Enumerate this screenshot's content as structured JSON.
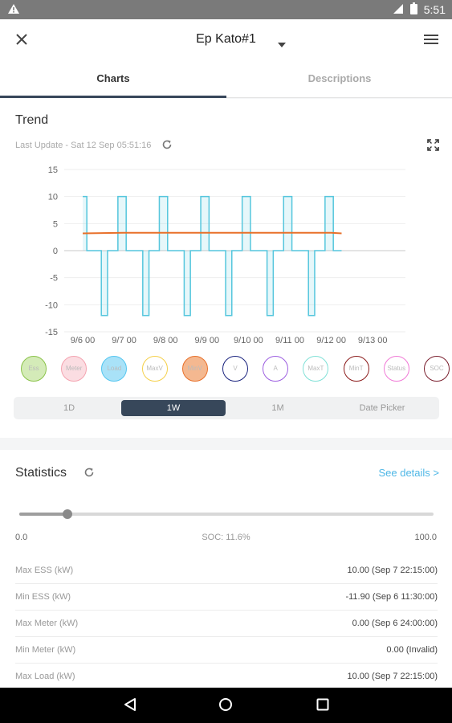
{
  "status_bar": {
    "time": "5:51"
  },
  "header": {
    "title": "Ep Kato#1"
  },
  "tabs": [
    {
      "label": "Charts"
    },
    {
      "label": "Descriptions"
    }
  ],
  "trend": {
    "title": "Trend",
    "last_update": "Last Update - Sat 12 Sep 05:51:16"
  },
  "chart_data": {
    "type": "line",
    "x_tick_labels": [
      "9/6 00",
      "9/7 00",
      "9/8 00",
      "9/9 00",
      "9/10 00",
      "9/11 00",
      "9/12 00",
      "9/13 00"
    ],
    "y_ticks": [
      15,
      10,
      5,
      0,
      -5,
      -10,
      -15
    ],
    "ylim": [
      -15,
      15
    ],
    "series": [
      {
        "name": "Load",
        "color": "#55c6dd",
        "points": [
          [
            0.0,
            10
          ],
          [
            0.1,
            10
          ],
          [
            0.1,
            0
          ],
          [
            0.45,
            0
          ],
          [
            0.45,
            -12
          ],
          [
            0.6,
            -12
          ],
          [
            0.6,
            0
          ],
          [
            0.85,
            0
          ],
          [
            0.85,
            10
          ],
          [
            1.05,
            10
          ],
          [
            1.05,
            0
          ],
          [
            1.45,
            0
          ],
          [
            1.45,
            -12
          ],
          [
            1.6,
            -12
          ],
          [
            1.6,
            0
          ],
          [
            1.85,
            0
          ],
          [
            1.85,
            10
          ],
          [
            2.05,
            10
          ],
          [
            2.05,
            0
          ],
          [
            2.45,
            0
          ],
          [
            2.45,
            -12
          ],
          [
            2.6,
            -12
          ],
          [
            2.6,
            0
          ],
          [
            2.85,
            0
          ],
          [
            2.85,
            10
          ],
          [
            3.05,
            10
          ],
          [
            3.05,
            0
          ],
          [
            3.45,
            0
          ],
          [
            3.45,
            -12
          ],
          [
            3.6,
            -12
          ],
          [
            3.6,
            0
          ],
          [
            3.85,
            0
          ],
          [
            3.85,
            10
          ],
          [
            4.05,
            10
          ],
          [
            4.05,
            0
          ],
          [
            4.45,
            0
          ],
          [
            4.45,
            -12
          ],
          [
            4.6,
            -12
          ],
          [
            4.6,
            0
          ],
          [
            4.85,
            0
          ],
          [
            4.85,
            10
          ],
          [
            5.05,
            10
          ],
          [
            5.05,
            0
          ],
          [
            5.45,
            0
          ],
          [
            5.45,
            -12
          ],
          [
            5.6,
            -12
          ],
          [
            5.6,
            0
          ],
          [
            5.85,
            0
          ],
          [
            5.85,
            10
          ],
          [
            6.05,
            10
          ],
          [
            6.05,
            0
          ],
          [
            6.25,
            0
          ]
        ]
      },
      {
        "name": "MinV",
        "color": "#e8702a",
        "points": [
          [
            0.0,
            3.2
          ],
          [
            1.0,
            3.3
          ],
          [
            2.0,
            3.3
          ],
          [
            3.0,
            3.3
          ],
          [
            4.0,
            3.3
          ],
          [
            5.0,
            3.3
          ],
          [
            6.0,
            3.3
          ],
          [
            6.25,
            3.2
          ]
        ]
      }
    ]
  },
  "legend": [
    {
      "label": "Ess",
      "color": "#8bc34a",
      "fill": "#d4ebb8"
    },
    {
      "label": "Meter",
      "color": "#f4a3b0",
      "fill": "#fbdde2"
    },
    {
      "label": "Load",
      "color": "#55c6f0",
      "fill": "#a9e2f8"
    },
    {
      "label": "MaxV",
      "color": "#f5d04a",
      "fill": "#ffffff"
    },
    {
      "label": "MinV",
      "color": "#e8702a",
      "fill": "#f4b890"
    },
    {
      "label": "V",
      "color": "#1a237e",
      "fill": "#ffffff"
    },
    {
      "label": "A",
      "color": "#9c5ee0",
      "fill": "#ffffff"
    },
    {
      "label": "MaxT",
      "color": "#7fe0d6",
      "fill": "#ffffff"
    },
    {
      "label": "MinT",
      "color": "#8b1a1a",
      "fill": "#ffffff"
    },
    {
      "label": "Status",
      "color": "#f07ad6",
      "fill": "#ffffff"
    },
    {
      "label": "SOC",
      "color": "#7a1f2e",
      "fill": "#ffffff"
    }
  ],
  "ranges": [
    {
      "label": "1D"
    },
    {
      "label": "1W"
    },
    {
      "label": "1M"
    },
    {
      "label": "Date Picker"
    }
  ],
  "selected_range": "1W",
  "statistics": {
    "title": "Statistics",
    "see_details": "See details >",
    "slider_min": "0.0",
    "slider_max": "100.0",
    "soc_label": "SOC: 11.6%",
    "soc_value": 11.6,
    "rows": [
      {
        "key": "Max ESS (kW)",
        "value": "10.00 (Sep 7 22:15:00)"
      },
      {
        "key": "Min ESS (kW)",
        "value": "-11.90 (Sep 6 11:30:00)"
      },
      {
        "key": "Max Meter (kW)",
        "value": "0.00 (Sep 6 24:00:00)"
      },
      {
        "key": "Min Meter (kW)",
        "value": "0.00 (Invalid)"
      },
      {
        "key": "Max Load (kW)",
        "value": "10.00 (Sep 7 22:15:00)"
      }
    ]
  }
}
